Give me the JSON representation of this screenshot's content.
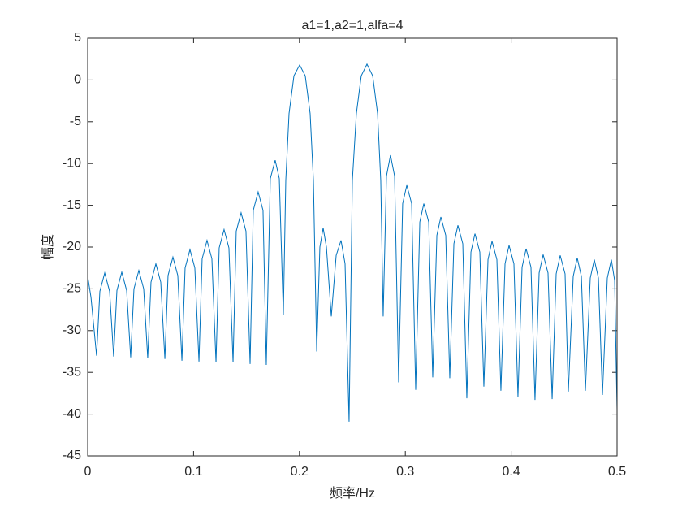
{
  "chart_data": {
    "type": "line",
    "title": "a1=1,a2=1,alfa=4",
    "x_label": "频率/Hz",
    "y_label": "幅度",
    "xlim": [
      0,
      0.5
    ],
    "xticks": [
      0,
      0.1,
      0.2,
      0.3,
      0.4,
      0.5
    ],
    "ylim": [
      -45,
      5
    ],
    "yticks": [
      5,
      0,
      -5,
      -10,
      -15,
      -20,
      -25,
      -30,
      -35,
      -40,
      -45
    ],
    "grid": false,
    "series": [
      {
        "color": "#0072bd",
        "x": [
          0,
          0.0031,
          0.0084,
          0.0115,
          0.0161,
          0.0207,
          0.0245,
          0.0276,
          0.0322,
          0.0368,
          0.0406,
          0.0437,
          0.0483,
          0.0529,
          0.0567,
          0.0598,
          0.0644,
          0.069,
          0.0729,
          0.0759,
          0.0805,
          0.0851,
          0.089,
          0.092,
          0.0966,
          0.1012,
          0.1051,
          0.1081,
          0.1127,
          0.1173,
          0.1212,
          0.1242,
          0.1288,
          0.1334,
          0.1373,
          0.1403,
          0.1449,
          0.1495,
          0.1534,
          0.1564,
          0.161,
          0.1656,
          0.1687,
          0.1725,
          0.1771,
          0.181,
          0.1848,
          0.1871,
          0.1902,
          0.1948,
          0.2002,
          0.2055,
          0.2101,
          0.2132,
          0.2163,
          0.2193,
          0.2224,
          0.2255,
          0.2301,
          0.2347,
          0.2393,
          0.2431,
          0.2469,
          0.25,
          0.2538,
          0.2584,
          0.2638,
          0.2692,
          0.2738,
          0.2768,
          0.2791,
          0.2822,
          0.286,
          0.2899,
          0.2937,
          0.2975,
          0.3014,
          0.306,
          0.3098,
          0.3137,
          0.3175,
          0.3221,
          0.3259,
          0.3298,
          0.3336,
          0.3382,
          0.342,
          0.3459,
          0.3497,
          0.3543,
          0.3581,
          0.362,
          0.3658,
          0.3704,
          0.3742,
          0.3781,
          0.3819,
          0.3865,
          0.3903,
          0.3942,
          0.398,
          0.4026,
          0.4064,
          0.4103,
          0.4141,
          0.4187,
          0.4225,
          0.4264,
          0.4302,
          0.4348,
          0.4387,
          0.4425,
          0.4463,
          0.4509,
          0.454,
          0.4586,
          0.4624,
          0.4663,
          0.4701,
          0.4747,
          0.4785,
          0.4824,
          0.4862,
          0.4908,
          0.4946,
          0.4977,
          0.5
        ],
        "values": [
          -23.5,
          -26,
          -33,
          -25.3,
          -23.1,
          -25.3,
          -33.1,
          -25.2,
          -23,
          -25.2,
          -33.2,
          -25,
          -22.8,
          -25,
          -33.3,
          -24.2,
          -22,
          -24.2,
          -33.4,
          -23.4,
          -21.2,
          -23.4,
          -33.6,
          -22.5,
          -20.3,
          -22.5,
          -33.7,
          -21.4,
          -19.2,
          -21.4,
          -33.8,
          -20.1,
          -17.9,
          -20.1,
          -33.8,
          -18.1,
          -15.9,
          -18.1,
          -34,
          -15.6,
          -13.4,
          -15.6,
          -34.1,
          -11.8,
          -9.6,
          -11.8,
          -28.1,
          -12,
          -4,
          0.5,
          1.8,
          0.5,
          -4,
          -12,
          -32.5,
          -20,
          -17.7,
          -20,
          -28.3,
          -21,
          -19.2,
          -22,
          -40.9,
          -12,
          -4,
          0.5,
          1.9,
          0.5,
          -4,
          -12,
          -28.3,
          -11.5,
          -9,
          -11.5,
          -36.2,
          -14.8,
          -12.6,
          -14.8,
          -37.1,
          -17,
          -14.8,
          -17,
          -35.6,
          -18.6,
          -16.4,
          -18.6,
          -35.7,
          -19.6,
          -17.4,
          -19.6,
          -38.1,
          -20.6,
          -18.4,
          -20.6,
          -36.7,
          -21.5,
          -19.3,
          -21.5,
          -37.2,
          -22,
          -19.8,
          -22,
          -37.9,
          -22.4,
          -20.2,
          -22.4,
          -38.3,
          -23.1,
          -20.9,
          -23.1,
          -38.2,
          -23.2,
          -21,
          -23.2,
          -37.3,
          -23.5,
          -21.3,
          -23.5,
          -37.2,
          -23.7,
          -21.5,
          -23.7,
          -37.7,
          -23.7,
          -21.5,
          -24,
          -39.5
        ]
      }
    ]
  }
}
